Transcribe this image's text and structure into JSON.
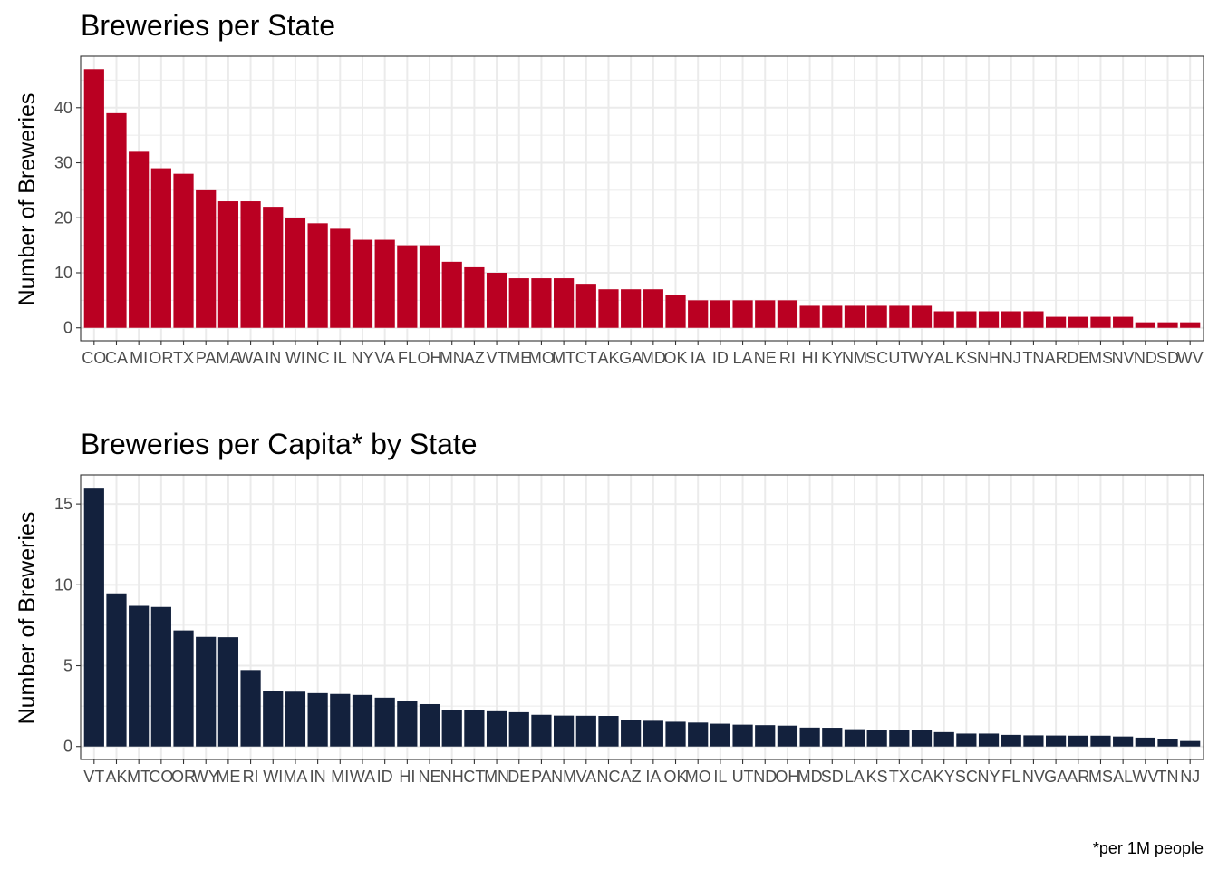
{
  "chart_data": [
    {
      "type": "bar",
      "title": "Breweries per State",
      "xlabel": "",
      "ylabel": "Number of Breweries",
      "ylim": [
        0,
        47
      ],
      "y_ticks": [
        0,
        10,
        20,
        30,
        40
      ],
      "grid": true,
      "color": "#BA0022",
      "categories": [
        "CO",
        "CA",
        "MI",
        "OR",
        "TX",
        "PA",
        "MA",
        "WA",
        "IN",
        "WI",
        "NC",
        "IL",
        "NY",
        "VA",
        "FL",
        "OH",
        "MN",
        "AZ",
        "VT",
        "ME",
        "MO",
        "MT",
        "CT",
        "AK",
        "GA",
        "MD",
        "OK",
        "IA",
        "ID",
        "LA",
        "NE",
        "RI",
        "HI",
        "KY",
        "NM",
        "SC",
        "UT",
        "WY",
        "AL",
        "KS",
        "NH",
        "NJ",
        "TN",
        "AR",
        "DE",
        "MS",
        "NV",
        "ND",
        "SD",
        "WV"
      ],
      "values": [
        47,
        39,
        32,
        29,
        28,
        25,
        23,
        23,
        22,
        20,
        19,
        18,
        16,
        16,
        15,
        15,
        12,
        11,
        10,
        9,
        9,
        9,
        8,
        7,
        7,
        7,
        6,
        5,
        5,
        5,
        5,
        5,
        4,
        4,
        4,
        4,
        4,
        4,
        3,
        3,
        3,
        3,
        3,
        2,
        2,
        2,
        2,
        1,
        1,
        1
      ]
    },
    {
      "type": "bar",
      "title": "Breweries per Capita* by State",
      "xlabel": "",
      "ylabel": "Number of Breweries",
      "ylim": [
        0,
        16
      ],
      "y_ticks": [
        0,
        5,
        10,
        15
      ],
      "grid": true,
      "color": "#13213D",
      "categories": [
        "VT",
        "AK",
        "MT",
        "CO",
        "OR",
        "WY",
        "ME",
        "RI",
        "WI",
        "MA",
        "IN",
        "MI",
        "WA",
        "ID",
        "HI",
        "NE",
        "NH",
        "CT",
        "MN",
        "DE",
        "PA",
        "NM",
        "VA",
        "NC",
        "AZ",
        "IA",
        "OK",
        "MO",
        "IL",
        "UT",
        "ND",
        "OH",
        "MD",
        "SD",
        "LA",
        "KS",
        "TX",
        "CA",
        "KY",
        "SC",
        "NY",
        "FL",
        "NV",
        "GA",
        "AR",
        "MS",
        "AL",
        "WV",
        "TN",
        "NJ"
      ],
      "values": [
        15.95,
        9.47,
        8.7,
        8.63,
        7.18,
        6.78,
        6.76,
        4.73,
        3.45,
        3.39,
        3.3,
        3.25,
        3.19,
        3.02,
        2.8,
        2.62,
        2.25,
        2.23,
        2.18,
        2.12,
        1.96,
        1.91,
        1.9,
        1.89,
        1.62,
        1.59,
        1.53,
        1.48,
        1.41,
        1.35,
        1.32,
        1.29,
        1.17,
        1.16,
        1.07,
        1.03,
        1.0,
        1.0,
        0.89,
        0.8,
        0.8,
        0.72,
        0.69,
        0.68,
        0.67,
        0.67,
        0.62,
        0.55,
        0.45,
        0.34
      ]
    }
  ],
  "caption": "*per 1M people"
}
